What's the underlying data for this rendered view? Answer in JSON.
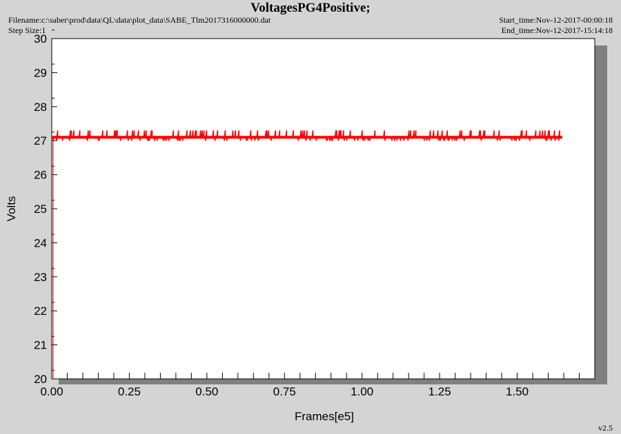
{
  "header": {
    "filename": "Filename:c:\\saber\\prod\\data\\QL\\data\\plot_data\\SABE_Tlm2017316000000.dat",
    "step_size": "Step Size:1",
    "start_time": "Start_time:Nov-12-2017-00:00:18",
    "end_time": "End_time:Nov-12-2017-15:14:18"
  },
  "version": "v2.5",
  "colors": {
    "background": "#d4d4d4",
    "plot_area": "#ffffff",
    "shadow": "#808080",
    "series": "#ff0000"
  },
  "chart_data": {
    "type": "line",
    "title": "VoltagesPG4Positive;",
    "xlabel": "Frames[e5]",
    "ylabel": "Volts",
    "xlim": [
      0,
      1.75
    ],
    "ylim": [
      20,
      30
    ],
    "xticks": [
      "0.00",
      "0.25",
      "0.50",
      "0.75",
      "1.00",
      "1.25",
      "1.50"
    ],
    "yticks": [
      "20",
      "21",
      "22",
      "23",
      "24",
      "25",
      "26",
      "27",
      "28",
      "29",
      "30"
    ],
    "grid": false,
    "legend": "none",
    "series": [
      {
        "x_range": [
          0,
          1.645
        ],
        "baseline": 27.1,
        "spike_high": 27.3,
        "spike_low": 27.0
      }
    ]
  }
}
